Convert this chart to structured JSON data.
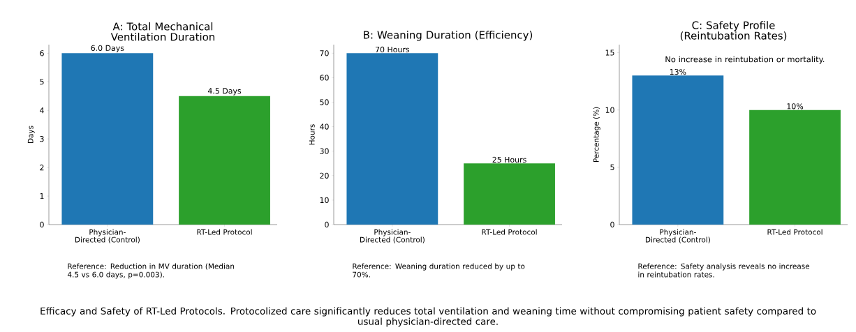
{
  "chart_data": [
    {
      "type": "bar",
      "title": "A: Total Mechanical Ventilation Duration",
      "ylabel": "Days",
      "categories": [
        "Physician-Directed (Control)",
        "RT-Led Protocol"
      ],
      "values": [
        6.0,
        4.5
      ],
      "colors": [
        "#1f77b4",
        "#2ca02c"
      ],
      "value_labels": [
        "6.0 Days",
        "4.5 Days"
      ],
      "ylim": [
        0,
        6.3
      ],
      "yticks": [
        0,
        1,
        2,
        3,
        4,
        5,
        6
      ],
      "annotations": [
        "Reference: Reduction in MV duration (Median 4.5 vs 6.0 days, p=0.003).",
        "Efficacy and Safety of RT-Led Protocols. Protocolized care significantly reduces total ventilation and weaning time without compromising patient safety compared to usual physician-directed care."
      ]
    },
    {
      "type": "bar",
      "title": "B: Weaning Duration (Efficiency)",
      "ylabel": "Hours",
      "categories": [
        "Physician-Directed (Control)",
        "RT-Led Protocol"
      ],
      "values": [
        70,
        25
      ],
      "colors": [
        "#1f77b4",
        "#2ca02c"
      ],
      "value_labels": [
        "70 Hours",
        "25 Hours"
      ],
      "ylim": [
        0,
        73.5
      ],
      "yticks": [
        0,
        10,
        20,
        30,
        40,
        50,
        60,
        70
      ],
      "annotations": [
        "Reference: Weaning duration reduced by up to 70%."
      ]
    },
    {
      "type": "bar",
      "title": "C: Safety Profile (Reintubation Rates)",
      "ylabel": "Percentage (%)",
      "categories": [
        "Physician-Directed (Control)",
        "RT-Led Protocol"
      ],
      "values": [
        13,
        10
      ],
      "colors": [
        "#1f77b4",
        "#2ca02c"
      ],
      "value_labels": [
        "13%",
        "10%"
      ],
      "ylim": [
        0,
        15.7
      ],
      "yticks": [
        0,
        5,
        10,
        15
      ],
      "annotations": [
        "Reference: Safety analysis reveals no increase in reintubation rates.",
        "No increase in reintubation or mortality."
      ]
    }
  ]
}
